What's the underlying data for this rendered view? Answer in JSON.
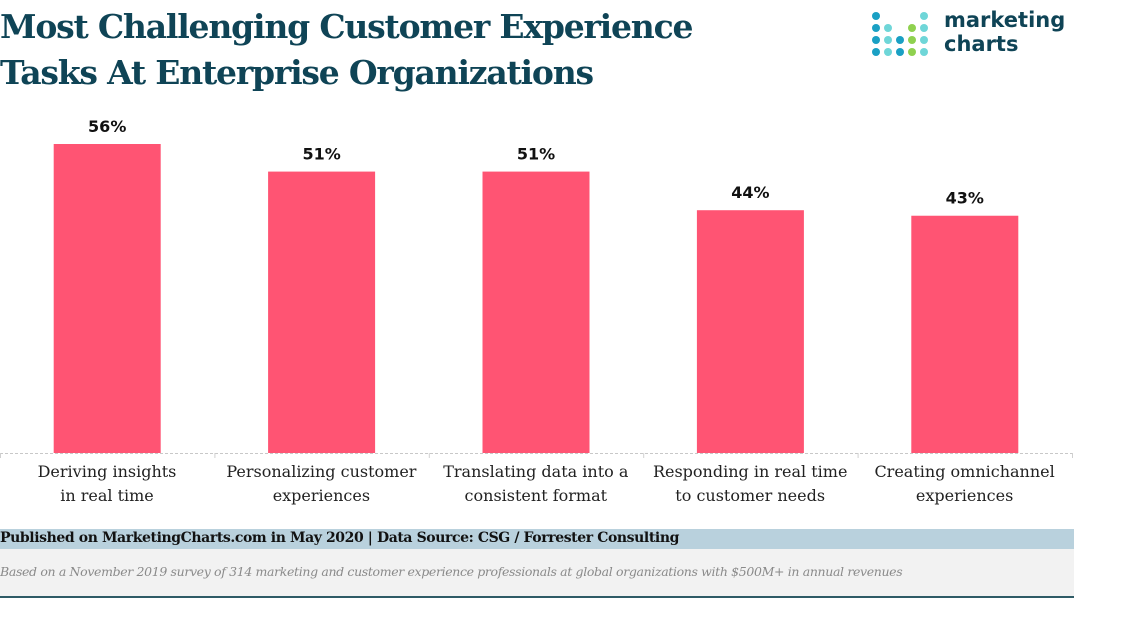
{
  "header": {
    "title_line1": "Most Challenging Customer Experience",
    "title_line2": "Tasks At Enterprise Organizations"
  },
  "logo": {
    "line1": "marketing",
    "line2": "charts",
    "colors": {
      "dark_blue": "#1aa0c4",
      "light_teal": "#6fd6d8",
      "green": "#8fd14f"
    }
  },
  "chart_data": {
    "type": "bar",
    "title": "Most Challenging Customer Experience Tasks At Enterprise Organizations",
    "categories": [
      "Deriving insights in real time",
      "Personalizing customer experiences",
      "Translating data into a consistent format",
      "Responding in real time to customer needs",
      "Creating omnichannel experiences"
    ],
    "category_lines": [
      [
        "Deriving insights",
        "in real time"
      ],
      [
        "Personalizing customer",
        "experiences"
      ],
      [
        "Translating data into a",
        "consistent format"
      ],
      [
        "Responding in real time",
        "to customer needs"
      ],
      [
        "Creating omnichannel",
        "experiences"
      ]
    ],
    "values": [
      56,
      51,
      51,
      44,
      43
    ],
    "data_labels": [
      "56%",
      "51%",
      "51%",
      "44%",
      "43%"
    ],
    "xlabel": "",
    "ylabel": "",
    "ylim": [
      0,
      56
    ],
    "grid": false,
    "bar_color": "#ff5473"
  },
  "footer": {
    "source": "Published on MarketingCharts.com in May 2020 | Data Source: CSG / Forrester Consulting",
    "note": "Based on a November 2019 survey of 314 marketing and customer experience professionals at global organizations with $500M+ in annual revenues"
  }
}
